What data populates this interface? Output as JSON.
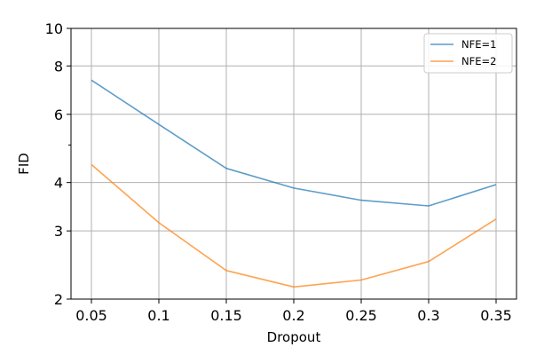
{
  "chart_data": {
    "type": "line",
    "title": "",
    "xlabel": "Dropout",
    "ylabel": "FID",
    "x": [
      0.05,
      0.1,
      0.15,
      0.2,
      0.25,
      0.3,
      0.35
    ],
    "x_tick_labels": [
      "0.05",
      "0.1",
      "0.15",
      "0.2",
      "0.25",
      "0.3",
      "0.35"
    ],
    "y_scale": "log",
    "ylim": [
      2,
      10
    ],
    "y_ticks_labeled": [
      2,
      3,
      4,
      6,
      8,
      10
    ],
    "y_tick_labels": [
      "2",
      "3",
      "4",
      "6",
      "8",
      "10"
    ],
    "y_ticks_minor_unlabeled": [
      5
    ],
    "grid": true,
    "legend": "top-right",
    "series": [
      {
        "name": "NFE=1",
        "color": "#1f77b4",
        "values": [
          7.35,
          5.65,
          4.35,
          3.87,
          3.6,
          3.48,
          3.95
        ]
      },
      {
        "name": "NFE=2",
        "color": "#ff7f0e",
        "values": [
          4.45,
          3.15,
          2.37,
          2.15,
          2.24,
          2.5,
          3.22
        ]
      }
    ]
  }
}
